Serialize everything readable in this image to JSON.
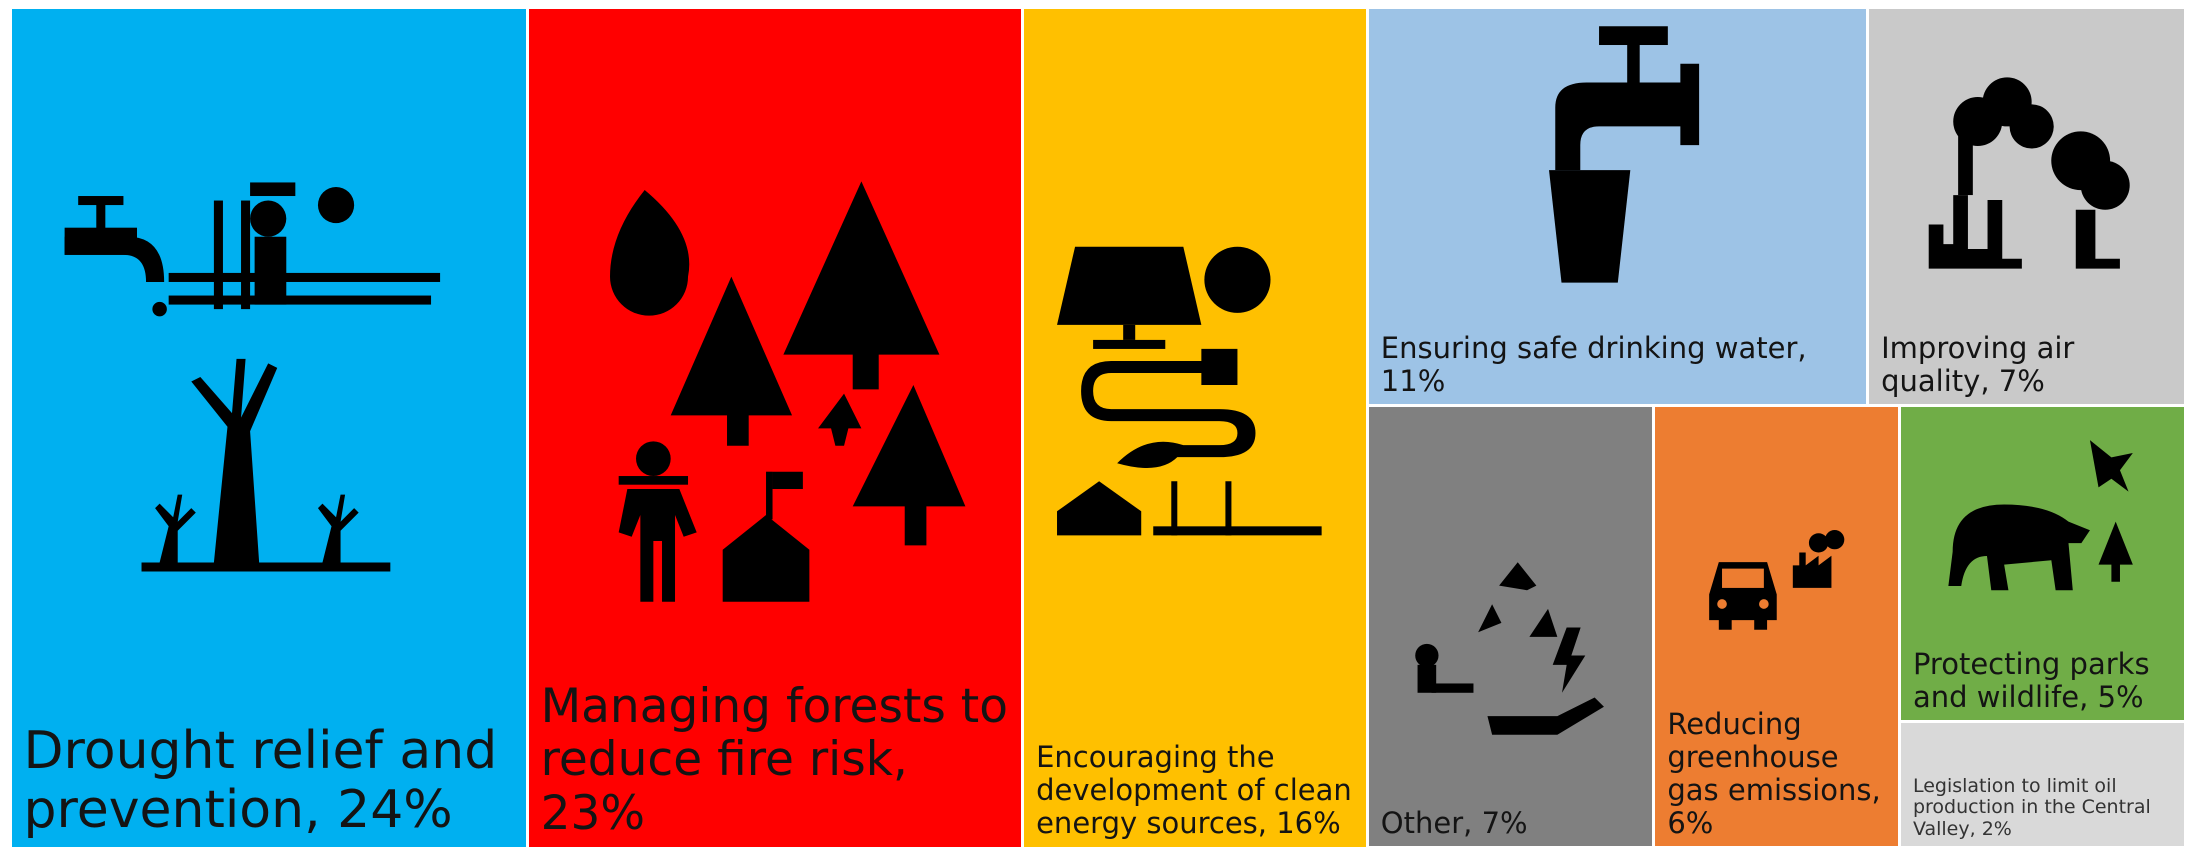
{
  "chart_data": {
    "type": "treemap",
    "values": [
      24,
      23,
      16,
      11,
      7,
      7,
      6,
      5,
      2
    ],
    "value_labels": [
      "Drought relief and prevention, 24%",
      "Managing forests to reduce fire risk, 23%",
      "Encouraging the development of clean energy sources, 16%",
      "Ensuring safe drinking water, 11%",
      "Improving air quality, 7%",
      "Other, 7%",
      "Reducing greenhouse gas emissions, 6%",
      "Protecting parks and wildlife, 5%",
      "Legislation to limit oil production in the Central Valley, 2%"
    ],
    "colors": [
      "#00b0f0",
      "#ff0000",
      "#ffc000",
      "#9dc3e6",
      "#c9c9c9",
      "#808080",
      "#ed7d31",
      "#70ad47",
      "#d9d9d9"
    ]
  }
}
